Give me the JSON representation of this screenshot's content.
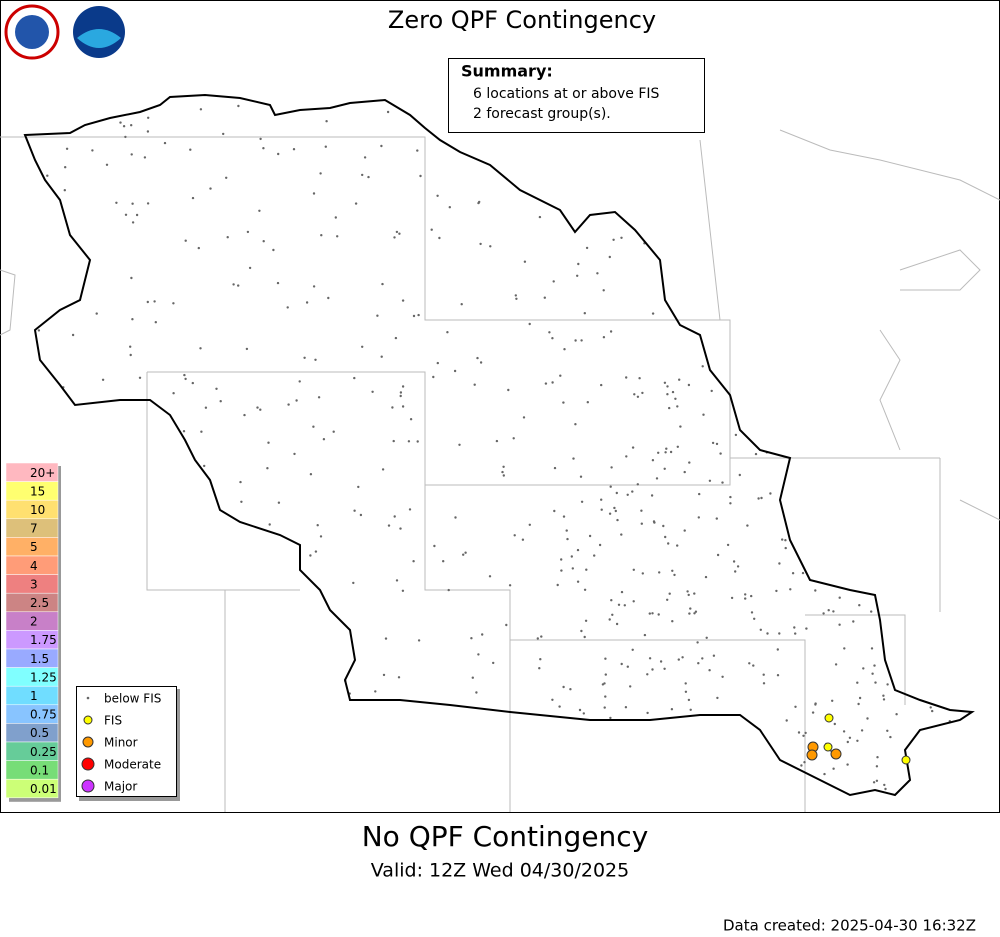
{
  "title": "Zero QPF Contingency",
  "summary": {
    "heading": "Summary:",
    "lines": [
      "6 locations at or above FIS",
      "2 forecast group(s)."
    ]
  },
  "color_scale": [
    {
      "label": "20+",
      "color": "#ffb8c0"
    },
    {
      "label": "15",
      "color": "#ffff70"
    },
    {
      "label": "10",
      "color": "#ffe070"
    },
    {
      "label": "7",
      "color": "#ddc07a"
    },
    {
      "label": "5",
      "color": "#ffb066"
    },
    {
      "label": "4",
      "color": "#ff9c78"
    },
    {
      "label": "3",
      "color": "#ee8080"
    },
    {
      "label": "2.5",
      "color": "#cc8484"
    },
    {
      "label": "2",
      "color": "#c880c8"
    },
    {
      "label": "1.75",
      "color": "#cc99ff"
    },
    {
      "label": "1.5",
      "color": "#99aaff"
    },
    {
      "label": "1.25",
      "color": "#80ffff"
    },
    {
      "label": "1",
      "color": "#70ddff"
    },
    {
      "label": "0.75",
      "color": "#88c4ff"
    },
    {
      "label": "0.5",
      "color": "#80a0cc"
    },
    {
      "label": "0.25",
      "color": "#66cc99"
    },
    {
      "label": "0.1",
      "color": "#77dd77"
    },
    {
      "label": "0.01",
      "color": "#ccff77"
    }
  ],
  "point_legend": [
    {
      "label": "below FIS",
      "color": "#666666"
    },
    {
      "label": "FIS",
      "color": "#ffff00"
    },
    {
      "label": "Minor",
      "color": "#ff9900"
    },
    {
      "label": "Moderate",
      "color": "#ff0000"
    },
    {
      "label": "Major",
      "color": "#cc33ff"
    }
  ],
  "footer": {
    "subtitle": "No QPF Contingency",
    "valid": "Valid: 12Z Wed 04/30/2025",
    "created": "Data created: 2025-04-30 16:32Z"
  }
}
